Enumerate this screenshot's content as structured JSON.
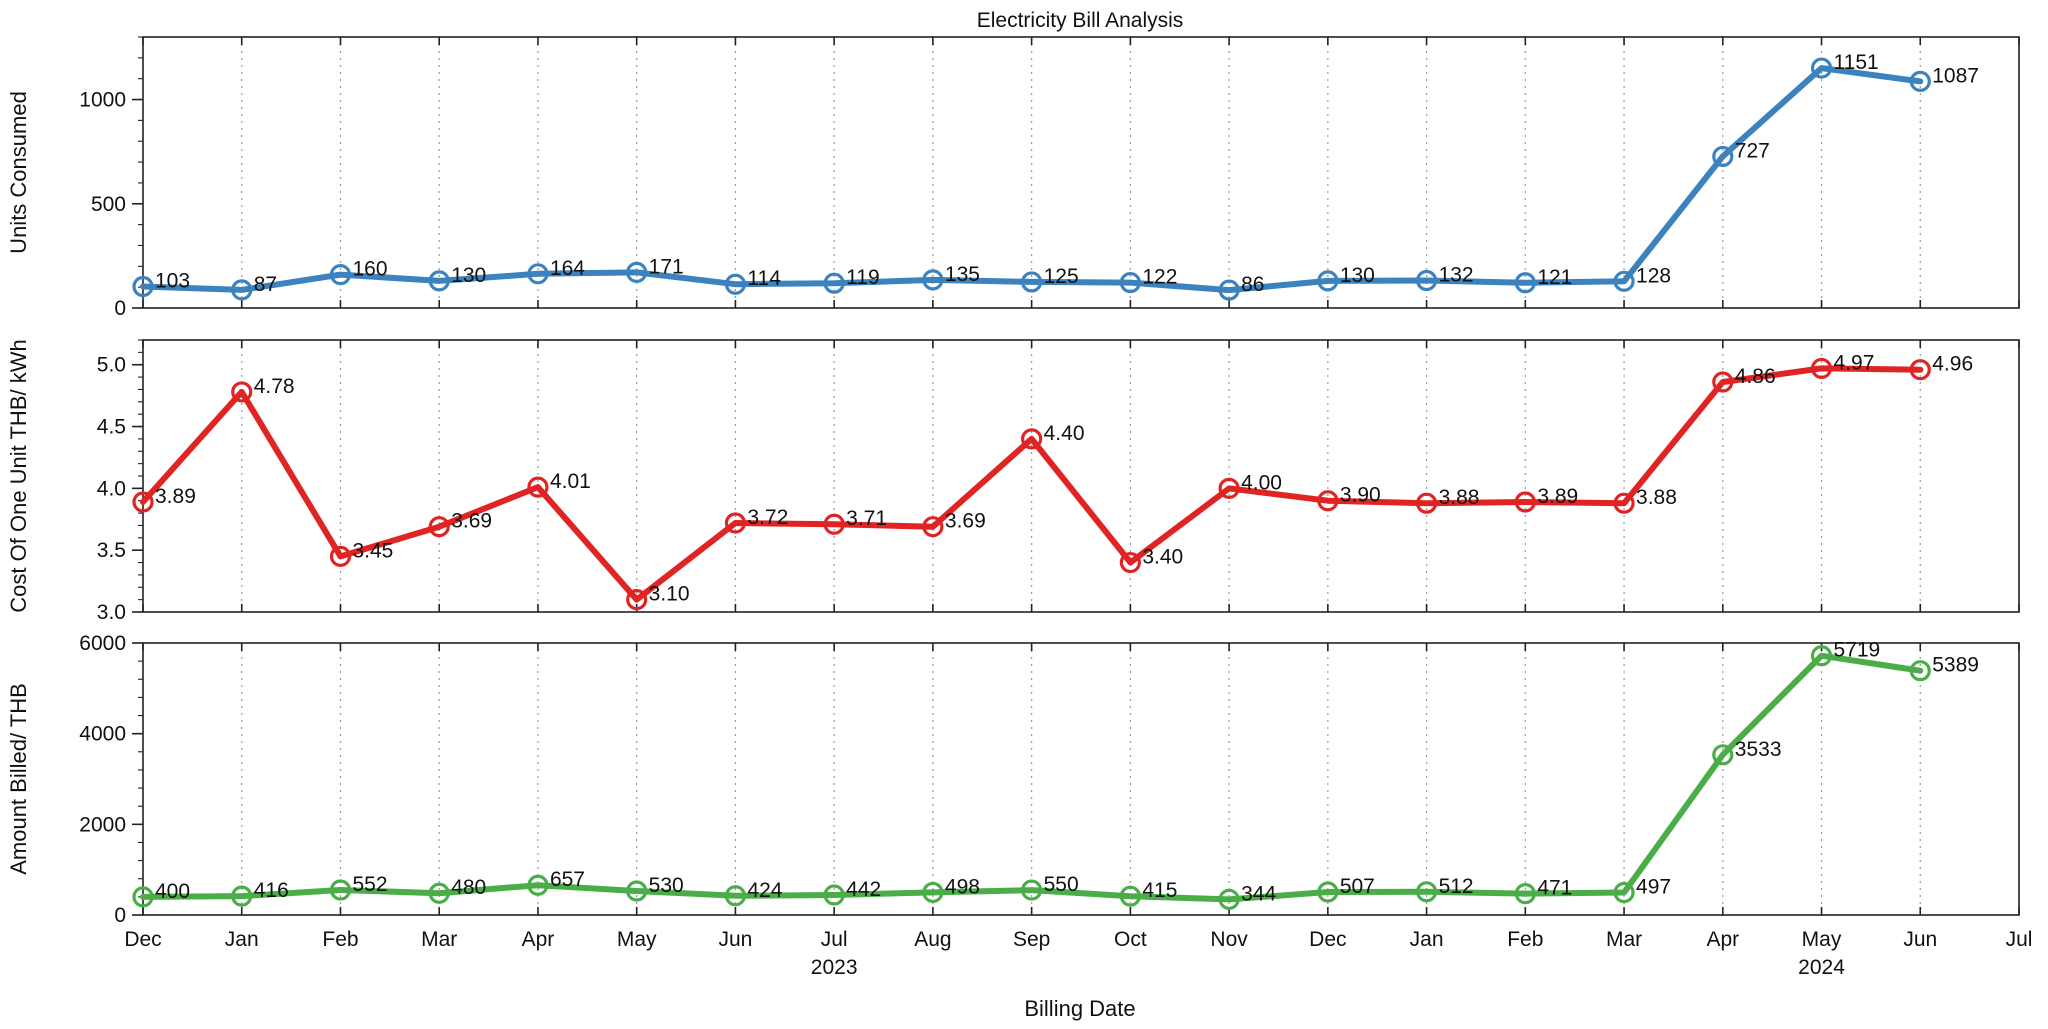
{
  "chart_data": {
    "title": "Electricity Bill Analysis",
    "xlabel": "Billing Date",
    "type": "line",
    "x_ticks": [
      "Dec",
      "Jan",
      "Feb",
      "Mar",
      "Apr",
      "May",
      "Jun",
      "Jul",
      "Aug",
      "Sep",
      "Oct",
      "Nov",
      "Dec",
      "Jan",
      "Feb",
      "Mar",
      "Apr",
      "May",
      "Jun",
      "Jul"
    ],
    "year_labels": [
      {
        "label": "2023",
        "at_tick": 7
      },
      {
        "label": "2024",
        "at_tick": 17
      }
    ],
    "x": [
      "2022-12",
      "2023-01",
      "2023-02",
      "2023-03",
      "2023-04",
      "2023-05",
      "2023-06",
      "2023-07",
      "2023-08",
      "2023-09",
      "2023-10",
      "2023-11",
      "2023-12",
      "2024-01",
      "2024-02",
      "2024-03",
      "2024-04",
      "2024-05",
      "2024-06"
    ],
    "panels": [
      {
        "ylabel": "Units Consumed",
        "color": "#3c82be",
        "ylim": [
          0,
          1300
        ],
        "yticks": [
          0,
          500,
          1000
        ],
        "yticklabels": [
          "0",
          "500",
          "1000"
        ],
        "minor_step": 100,
        "values": [
          103,
          87,
          160,
          130,
          164,
          171,
          114,
          119,
          135,
          125,
          122,
          86,
          130,
          132,
          121,
          128,
          727,
          1151,
          1087
        ],
        "labels": [
          "103",
          "87",
          "160",
          "130",
          "164",
          "171",
          "114",
          "119",
          "135",
          "125",
          "122",
          "86",
          "130",
          "132",
          "121",
          "128",
          "727",
          "1151",
          "1087"
        ]
      },
      {
        "ylabel": "Cost Of One Unit THB/ kWh",
        "color": "#e02424",
        "ylim": [
          3.0,
          5.2
        ],
        "yticks": [
          3.0,
          3.5,
          4.0,
          4.5,
          5.0
        ],
        "yticklabels": [
          "3.0",
          "3.5",
          "4.0",
          "4.5",
          "5.0"
        ],
        "minor_step": 0.1,
        "values": [
          3.89,
          4.78,
          3.45,
          3.69,
          4.01,
          3.1,
          3.72,
          3.71,
          3.69,
          4.4,
          3.4,
          4.0,
          3.9,
          3.88,
          3.89,
          3.88,
          4.86,
          4.97,
          4.96
        ],
        "labels": [
          "3.89",
          "4.78",
          "3.45",
          "3.69",
          "4.01",
          "3.10",
          "3.72",
          "3.71",
          "3.69",
          "4.40",
          "3.40",
          "4.00",
          "3.90",
          "3.88",
          "3.89",
          "3.88",
          "4.86",
          "4.97",
          "4.96"
        ]
      },
      {
        "ylabel": "Amount Billed/ THB",
        "color": "#4aad48",
        "ylim": [
          0,
          6000
        ],
        "yticks": [
          0,
          2000,
          4000,
          6000
        ],
        "yticklabels": [
          "0",
          "2000",
          "4000",
          "6000"
        ],
        "minor_step": 400,
        "values": [
          400,
          416,
          552,
          480,
          657,
          530,
          424,
          442,
          498,
          550,
          415,
          344,
          507,
          512,
          471,
          497,
          3533,
          5719,
          5389
        ],
        "labels": [
          "400",
          "416",
          "552",
          "480",
          "657",
          "530",
          "424",
          "442",
          "498",
          "550",
          "415",
          "344",
          "507",
          "512",
          "471",
          "497",
          "3533",
          "5719",
          "5389"
        ]
      }
    ]
  }
}
